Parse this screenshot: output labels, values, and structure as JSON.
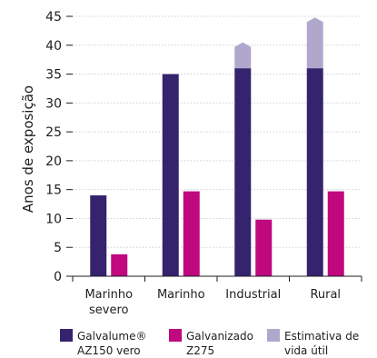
{
  "chart_data": {
    "type": "bar",
    "title": "",
    "xlabel": "",
    "ylabel": "Anos de exposição",
    "ylim": [
      0,
      45
    ],
    "yticks": [
      0,
      5,
      10,
      15,
      20,
      25,
      30,
      35,
      40,
      45
    ],
    "grid": true,
    "legend_position": "bottom",
    "categories": [
      {
        "lines": [
          "Marinho",
          "severo"
        ]
      },
      {
        "lines": [
          "Marinho"
        ]
      },
      {
        "lines": [
          "Industrial"
        ]
      },
      {
        "lines": [
          "Rural"
        ]
      }
    ],
    "series": [
      {
        "name": "Galvalume® AZ150 vero",
        "legend_lines": [
          "Galvalume®",
          "AZ150 vero"
        ],
        "color": "#35236e",
        "values": [
          14,
          35,
          36,
          36
        ]
      },
      {
        "name": "Galvanizado Z275",
        "legend_lines": [
          "Galvanizado",
          "Z275"
        ],
        "color": "#c0087f",
        "values": [
          3.8,
          14.7,
          9.8,
          14.7
        ]
      },
      {
        "name": "Estimativa de vida útil",
        "legend_lines": [
          "Estimativa de",
          "vida útil"
        ],
        "color": "#b0a8cc",
        "stacked_on": 0,
        "values": [
          null,
          null,
          40.5,
          44.8
        ]
      }
    ],
    "colors": {
      "grid": "#d2d2d2",
      "axis": "#1e1e1e",
      "text": "#1e1e1e"
    }
  }
}
